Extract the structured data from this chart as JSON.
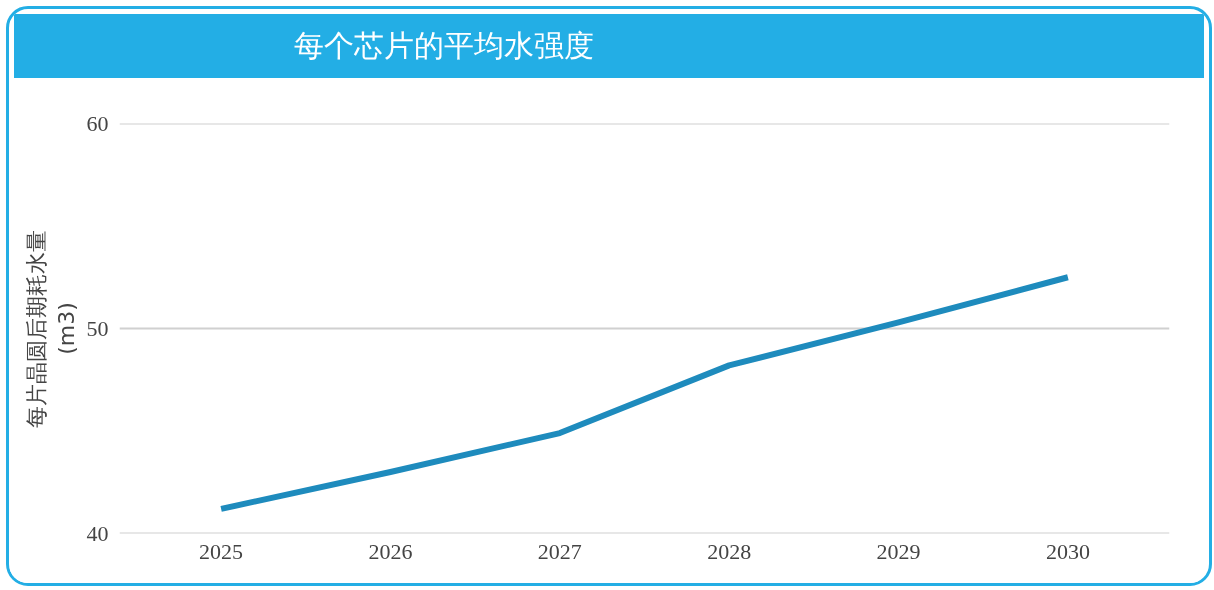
{
  "chart_data": {
    "type": "line",
    "title": "每个芯片的平均水强度",
    "ylabel": "每片晶圆后期耗水量\n(m3)",
    "categories": [
      "2025",
      "2026",
      "2027",
      "2028",
      "2029",
      "2030"
    ],
    "series": [
      {
        "color": "#1e8bbd",
        "values": [
          41.2,
          43.0,
          44.9,
          48.2,
          50.3,
          52.5
        ]
      }
    ],
    "ylim": [
      40,
      60
    ],
    "yticks": [
      40,
      50,
      60
    ],
    "grid": "y",
    "marker": "none",
    "line_style": "solid"
  }
}
